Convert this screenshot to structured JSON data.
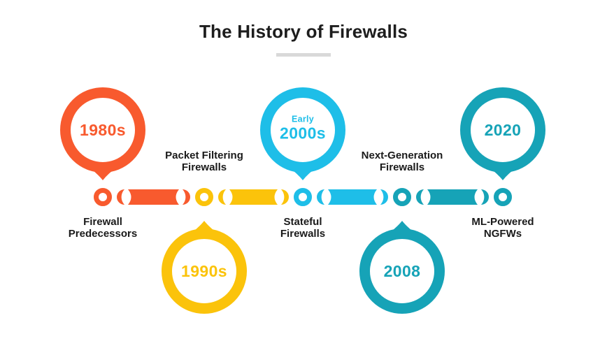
{
  "title": "The History of Firewalls",
  "palette": {
    "title": "#1d1d1d",
    "label": "#1a1a1a",
    "underline": "#d9d9d9",
    "background": "#ffffff",
    "orange": "#F85A2E",
    "yellow": "#FBC30B",
    "cyan": "#1EBEE8",
    "teal": "#16A3B7"
  },
  "milestones": [
    {
      "year": "1980s",
      "prefix": "",
      "label": "Firewall\nPredecessors",
      "circle_side": "above",
      "label_side": "below",
      "color": "#F85A2E"
    },
    {
      "year": "1990s",
      "prefix": "",
      "label": "Packet Filtering\nFirewalls",
      "circle_side": "below",
      "label_side": "above",
      "color": "#FBC30B"
    },
    {
      "year": "2000s",
      "prefix": "Early",
      "label": "Stateful\nFirewalls",
      "circle_side": "above",
      "label_side": "below",
      "color": "#1EBEE8"
    },
    {
      "year": "2008",
      "prefix": "",
      "label": "Next-Generation\nFirewalls",
      "circle_side": "below",
      "label_side": "above",
      "color": "#16A3B7"
    },
    {
      "year": "2020",
      "prefix": "",
      "label": "ML-Powered\nNGFWs",
      "circle_side": "above",
      "label_side": "below",
      "color": "#16A3B7"
    }
  ]
}
